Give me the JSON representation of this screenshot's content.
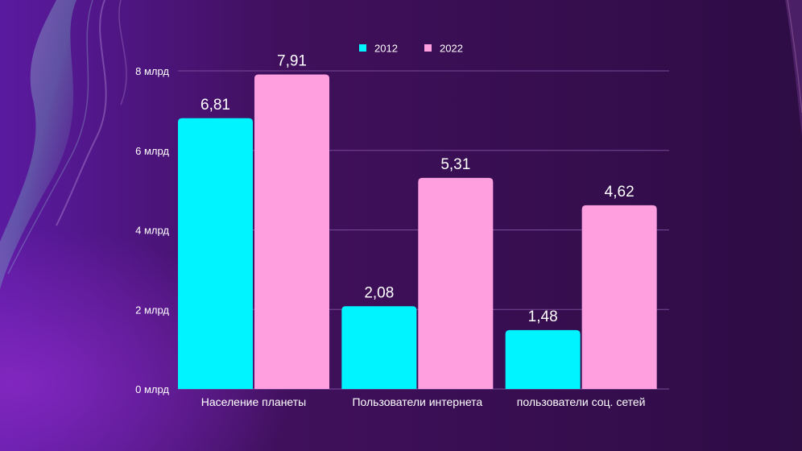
{
  "colors": {
    "background_left": "#5a1aa0",
    "background_right": "#2e0c44",
    "gridline": "#7a4a9a",
    "series_2012": "#00f4ff",
    "series_2022": "#ff9fe0"
  },
  "chart_data": {
    "type": "bar",
    "title": "",
    "xlabel": "",
    "ylabel": "",
    "categories": [
      "Население планеты",
      "Пользователи интернета",
      "пользователи соц. сетей"
    ],
    "series": [
      {
        "name": "2012",
        "values": [
          6.81,
          2.08,
          1.48
        ],
        "labels": [
          "6,81",
          "2,08",
          "1,48"
        ]
      },
      {
        "name": "2022",
        "values": [
          7.91,
          5.31,
          4.62
        ],
        "labels": [
          "7,91",
          "5,31",
          "4,62"
        ]
      }
    ],
    "ylim": [
      0,
      8
    ],
    "yticks": [
      0,
      2,
      4,
      6,
      8
    ],
    "ytick_labels": [
      "0 млрд",
      "2 млрд",
      "4 млрд",
      "6 млрд",
      "8 млрд"
    ],
    "grid": true,
    "legend_position": "top-center"
  }
}
